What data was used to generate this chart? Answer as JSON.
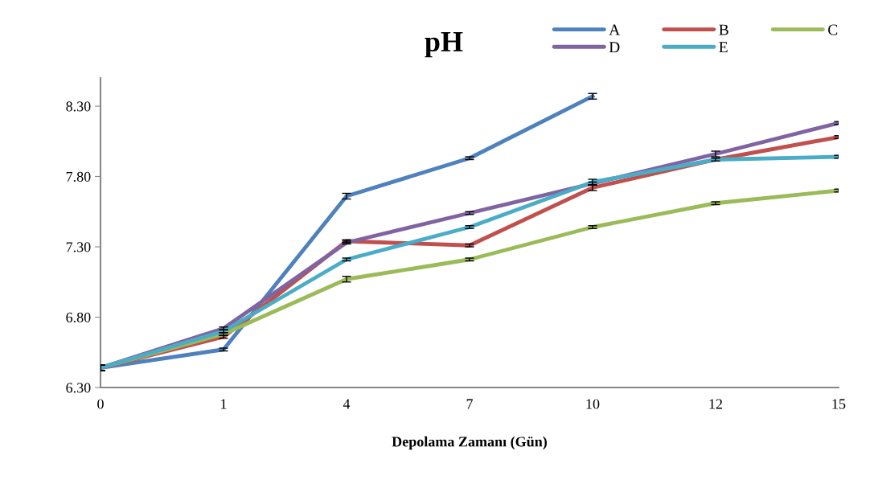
{
  "chart_data": {
    "type": "line",
    "title": "pH",
    "xlabel": "Depolama Zamanı (Gün)",
    "categories": [
      "0",
      "1",
      "4",
      "7",
      "10",
      "12",
      "15"
    ],
    "series": [
      {
        "name": "A",
        "color": "#4f81bd",
        "values": [
          6.44,
          6.57,
          7.66,
          7.93,
          8.37,
          null,
          null
        ],
        "errors": [
          0.02,
          0.01,
          0.02,
          0.01,
          0.02,
          null,
          null
        ]
      },
      {
        "name": "B",
        "color": "#c0504d",
        "values": [
          6.44,
          6.66,
          7.34,
          7.31,
          7.72,
          7.92,
          8.08
        ],
        "errors": [
          0.02,
          0.01,
          0.01,
          0.01,
          0.02,
          0.01,
          0.01
        ]
      },
      {
        "name": "C",
        "color": "#9bbb59",
        "values": [
          6.44,
          6.68,
          7.07,
          7.21,
          7.44,
          7.61,
          7.7
        ],
        "errors": [
          0.02,
          0.01,
          0.02,
          0.01,
          0.01,
          0.01,
          0.01
        ]
      },
      {
        "name": "D",
        "color": "#8064a2",
        "values": [
          6.44,
          6.72,
          7.33,
          7.54,
          7.75,
          7.96,
          8.18
        ],
        "errors": [
          0.02,
          0.01,
          0.01,
          0.01,
          0.01,
          0.02,
          0.01
        ]
      },
      {
        "name": "E",
        "color": "#4bacc6",
        "values": [
          6.44,
          6.7,
          7.21,
          7.44,
          7.76,
          7.92,
          7.94
        ],
        "errors": [
          0.02,
          0.01,
          0.01,
          0.01,
          0.02,
          null,
          0.01
        ]
      }
    ],
    "ylim": [
      6.3,
      8.5
    ],
    "yticks": [
      {
        "value": 6.3,
        "label": "6.30"
      },
      {
        "value": 6.8,
        "label": "6.80"
      },
      {
        "value": 7.3,
        "label": "7.30"
      },
      {
        "value": 7.8,
        "label": "7.80"
      },
      {
        "value": 8.3,
        "label": "8.30"
      }
    ],
    "grid": false,
    "legend": "top right",
    "marker": "none",
    "line_style": "solid"
  }
}
